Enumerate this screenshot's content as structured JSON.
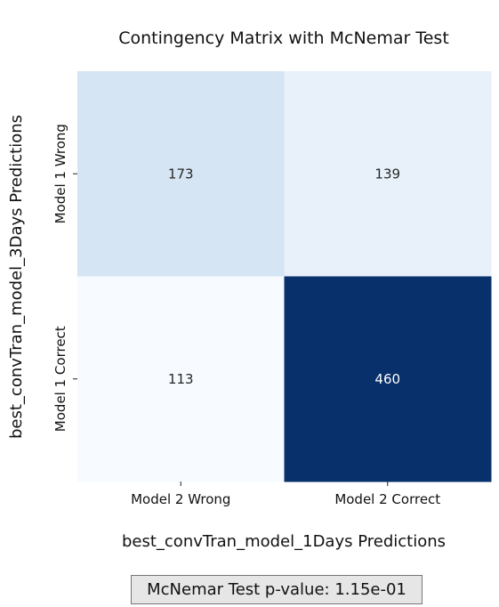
{
  "chart_data": {
    "type": "heatmap",
    "title": "Contingency Matrix with McNemar Test",
    "xlabel": "best_convTran_model_1Days Predictions",
    "ylabel": "best_convTran_model_3Days Predictions",
    "x_categories": [
      "Model 2 Wrong",
      "Model 2 Correct"
    ],
    "y_categories": [
      "Model 1 Wrong",
      "Model 1 Correct"
    ],
    "values": [
      [
        173,
        139
      ],
      [
        113,
        460
      ]
    ],
    "colormap": "Blues",
    "colorbar": false,
    "annotations": true
  },
  "footer": {
    "text": "McNemar Test p-value: 1.15e-01"
  },
  "colors": {
    "low": "#f7fbff",
    "mid": "#c6dbef",
    "high": "#08306b"
  }
}
